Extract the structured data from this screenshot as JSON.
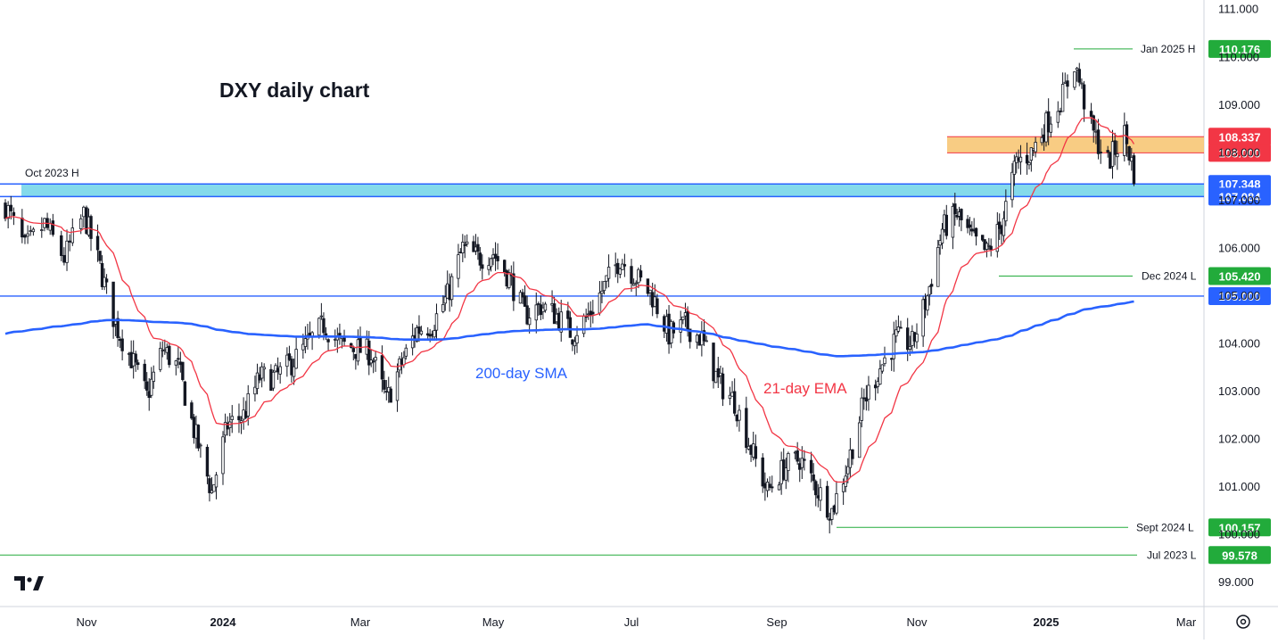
{
  "chart_data": {
    "type": "candlestick",
    "title": "DXY daily chart",
    "y_axis": {
      "min": 98.5,
      "max": 111.2,
      "position": "right",
      "ticks": [
        "111.000",
        "110.000",
        "109.000",
        "108.000",
        "107.000",
        "106.000",
        "105.000",
        "104.000",
        "103.000",
        "102.000",
        "101.000",
        "100.000",
        "99.000"
      ]
    },
    "x_axis": {
      "ticks": [
        {
          "label": "Nov",
          "bold": false
        },
        {
          "label": "2024",
          "bold": true
        },
        {
          "label": "Mar",
          "bold": false
        },
        {
          "label": "May",
          "bold": false
        },
        {
          "label": "Jul",
          "bold": false
        },
        {
          "label": "Sep",
          "bold": false
        },
        {
          "label": "Nov",
          "bold": false
        },
        {
          "label": "2025",
          "bold": true
        },
        {
          "label": "Mar",
          "bold": false
        }
      ]
    },
    "series": [
      {
        "name": "200-day SMA",
        "color": "#2962ff"
      },
      {
        "name": "21-day EMA",
        "color": "#f23645"
      }
    ],
    "zones": [
      {
        "from": 108.0,
        "to": 108.337,
        "color": "#f7c36d"
      },
      {
        "from": 107.084,
        "to": 107.348,
        "color": "#6fd3e8"
      }
    ],
    "levels": [
      {
        "label": "Jan 2025 H",
        "value": "110.176",
        "color": "#22ab3b"
      },
      {
        "label": "",
        "value": "108.337",
        "color": "#f23645"
      },
      {
        "label": "",
        "value": "108.000",
        "color": "#f23645"
      },
      {
        "label": "Oct 2023 H",
        "value": "107.348",
        "color": "#2962ff"
      },
      {
        "label": "",
        "value": "107.084",
        "color": "#2962ff"
      },
      {
        "label": "Dec 2024 L",
        "value": "105.420",
        "color": "#22ab3b"
      },
      {
        "label": "",
        "value": "105.000",
        "color": "#2962ff"
      },
      {
        "label": "Sept 2024 L",
        "value": "100.157",
        "color": "#22ab3b"
      },
      {
        "label": "Jul 2023 L",
        "value": "99.578",
        "color": "#22ab3b"
      }
    ],
    "price_path": [
      [
        "2023-10-03",
        106.9
      ],
      [
        "2023-10-10",
        106.0
      ],
      [
        "2023-10-17",
        106.5
      ],
      [
        "2023-10-24",
        105.8
      ],
      [
        "2023-10-31",
        106.7
      ],
      [
        "2023-11-07",
        105.6
      ],
      [
        "2023-11-14",
        104.4
      ],
      [
        "2023-11-21",
        103.7
      ],
      [
        "2023-11-28",
        102.9
      ],
      [
        "2023-12-05",
        103.9
      ],
      [
        "2023-12-12",
        103.5
      ],
      [
        "2023-12-19",
        102.2
      ],
      [
        "2023-12-27",
        100.9
      ],
      [
        "2024-01-03",
        102.3
      ],
      [
        "2024-01-10",
        102.5
      ],
      [
        "2024-01-17",
        103.3
      ],
      [
        "2024-01-24",
        103.3
      ],
      [
        "2024-01-31",
        103.6
      ],
      [
        "2024-02-07",
        104.0
      ],
      [
        "2024-02-14",
        104.4
      ],
      [
        "2024-02-21",
        104.0
      ],
      [
        "2024-02-28",
        103.9
      ],
      [
        "2024-03-06",
        103.8
      ],
      [
        "2024-03-13",
        102.8
      ],
      [
        "2024-03-20",
        103.6
      ],
      [
        "2024-03-27",
        104.3
      ],
      [
        "2024-04-03",
        104.4
      ],
      [
        "2024-04-10",
        105.0
      ],
      [
        "2024-04-17",
        106.0
      ],
      [
        "2024-04-24",
        105.8
      ],
      [
        "2024-05-01",
        105.9
      ],
      [
        "2024-05-08",
        105.4
      ],
      [
        "2024-05-15",
        104.6
      ],
      [
        "2024-05-22",
        104.8
      ],
      [
        "2024-05-29",
        104.6
      ],
      [
        "2024-06-05",
        104.2
      ],
      [
        "2024-06-12",
        104.6
      ],
      [
        "2024-06-19",
        105.2
      ],
      [
        "2024-06-26",
        105.8
      ],
      [
        "2024-07-03",
        105.4
      ],
      [
        "2024-07-10",
        105.0
      ],
      [
        "2024-07-17",
        104.2
      ],
      [
        "2024-07-24",
        104.4
      ],
      [
        "2024-07-31",
        104.1
      ],
      [
        "2024-08-07",
        103.2
      ],
      [
        "2024-08-14",
        102.8
      ],
      [
        "2024-08-21",
        101.8
      ],
      [
        "2024-08-28",
        100.9
      ],
      [
        "2024-09-04",
        101.4
      ],
      [
        "2024-09-11",
        101.6
      ],
      [
        "2024-09-18",
        101.0
      ],
      [
        "2024-09-25",
        100.5
      ],
      [
        "2024-10-02",
        101.5
      ],
      [
        "2024-10-09",
        102.8
      ],
      [
        "2024-10-16",
        103.5
      ],
      [
        "2024-10-23",
        104.1
      ],
      [
        "2024-10-30",
        104.0
      ],
      [
        "2024-11-06",
        105.0
      ],
      [
        "2024-11-13",
        106.4
      ],
      [
        "2024-11-20",
        106.7
      ],
      [
        "2024-11-27",
        106.2
      ],
      [
        "2024-12-04",
        105.9
      ],
      [
        "2024-12-11",
        106.5
      ],
      [
        "2024-12-18",
        107.8
      ],
      [
        "2024-12-25",
        108.0
      ],
      [
        "2025-01-01",
        108.6
      ],
      [
        "2025-01-08",
        109.2
      ],
      [
        "2025-01-13",
        109.9
      ],
      [
        "2025-01-20",
        108.5
      ],
      [
        "2025-01-27",
        107.8
      ],
      [
        "2025-02-03",
        108.4
      ],
      [
        "2025-02-07",
        107.6
      ]
    ]
  }
}
